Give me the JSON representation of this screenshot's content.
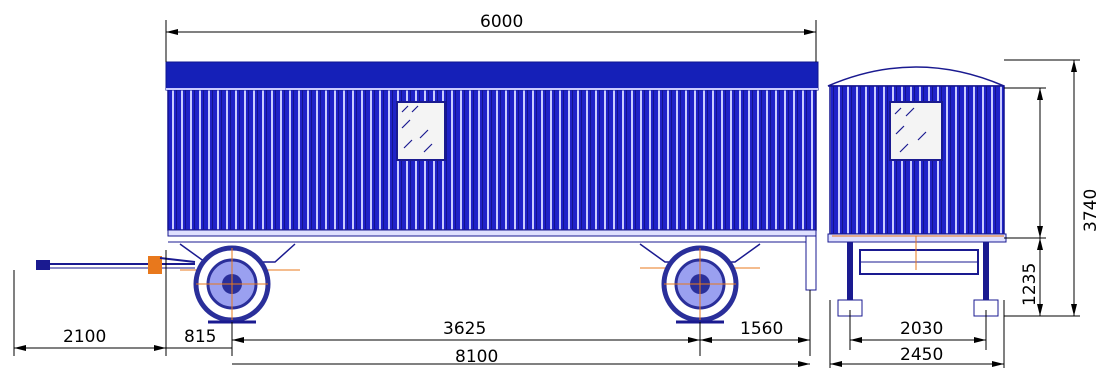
{
  "drawing": {
    "colors": {
      "body": "#1f22c8",
      "body_dark": "#14148f",
      "body_light": "#8e90f2",
      "roof": "#1520b8",
      "stripe": "#c9cbff",
      "window_bg": "#f4f4f4",
      "window_frame": "#1a1a90",
      "wheel": "#2a2f9a",
      "accent": "#e8781c",
      "dimension": "#000000"
    },
    "dimensions": {
      "body_length": "6000",
      "drawbar": "2100",
      "front_overhang": "815",
      "wheelbase": "3625",
      "rear_overhang": "1560",
      "overall_length": "8100",
      "overall_height": "3740",
      "floor_height": "1235",
      "track_width": "2030",
      "overall_width": "2450"
    }
  }
}
